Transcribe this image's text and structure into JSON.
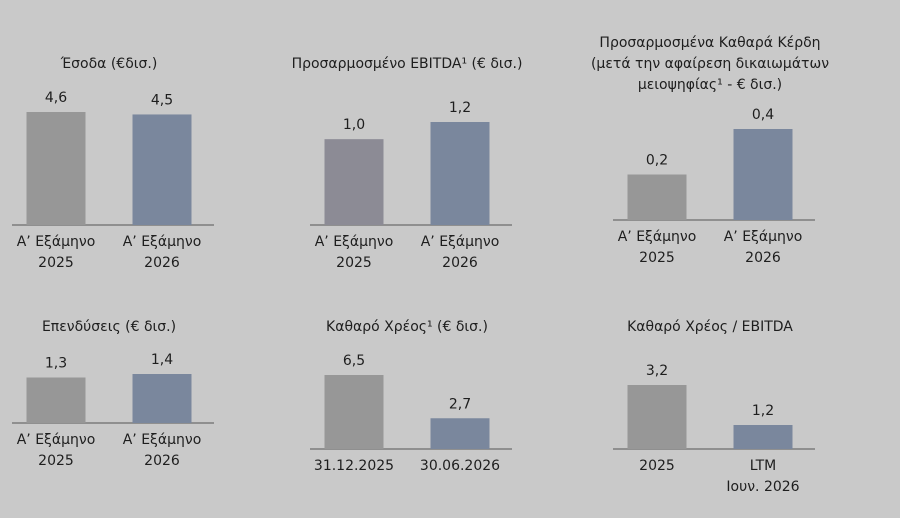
{
  "chart_data": [
    {
      "type": "bar",
      "title": "Έσοδα (€δισ.)",
      "categories": [
        [
          "Α’ Εξάμηνο",
          "2025"
        ],
        [
          "Α’ Εξάμηνο",
          "2026"
        ]
      ],
      "values": [
        4.6,
        4.5
      ],
      "value_labels": [
        "4,6",
        "4,5"
      ],
      "colors": [
        "#979797",
        "#7a879d"
      ]
    },
    {
      "type": "bar",
      "title": "Προσαρμοσμένο EBITDA¹ (€ δισ.)",
      "categories": [
        [
          "Α’ Εξάμηνο",
          "2025"
        ],
        [
          "Α’ Εξάμηνο",
          "2026"
        ]
      ],
      "values": [
        1.0,
        1.2
      ],
      "value_labels": [
        "1,0",
        "1,2"
      ],
      "colors": [
        "#8c8b95",
        "#7a879d"
      ]
    },
    {
      "type": "bar",
      "title": [
        "Προσαρμοσμένα Καθαρά Κέρδη",
        "(μετά την αφαίρεση δικαιωμάτων",
        "μειοψηφίας¹ - € δισ.)"
      ],
      "categories": [
        [
          "Α’ Εξάμηνο",
          "2025"
        ],
        [
          "Α’ Εξάμηνο",
          "2026"
        ]
      ],
      "values": [
        0.2,
        0.4
      ],
      "value_labels": [
        "0,2",
        "0,4"
      ],
      "colors": [
        "#979797",
        "#7a879d"
      ]
    },
    {
      "type": "bar",
      "title": "Επενδύσεις (€ δισ.)",
      "categories": [
        [
          "Α’ Εξάμηνο",
          "2025"
        ],
        [
          "Α’ Εξάμηνο",
          "2026"
        ]
      ],
      "values": [
        1.3,
        1.4
      ],
      "value_labels": [
        "1,3",
        "1,4"
      ],
      "colors": [
        "#979797",
        "#7a879d"
      ]
    },
    {
      "type": "bar",
      "title": "Καθαρό Χρέος¹ (€ δισ.)",
      "categories": [
        [
          "31.12.2025"
        ],
        [
          "30.06.2026"
        ]
      ],
      "values": [
        6.5,
        2.7
      ],
      "value_labels": [
        "6,5",
        "2,7"
      ],
      "colors": [
        "#979797",
        "#7a879d"
      ]
    },
    {
      "type": "bar",
      "title": "Καθαρό Χρέος / EBITDA",
      "categories": [
        [
          "2025"
        ],
        [
          "LTM",
          "Ιουν. 2026"
        ]
      ],
      "values": [
        3.2,
        1.2
      ],
      "value_labels": [
        "3,2",
        "1,2"
      ],
      "colors": [
        "#979797",
        "#7a879d"
      ]
    }
  ]
}
